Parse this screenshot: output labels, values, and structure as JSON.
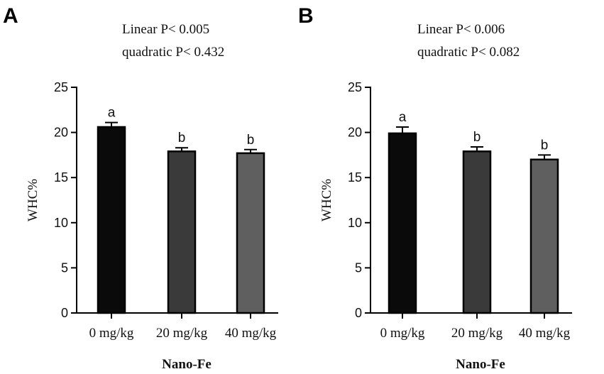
{
  "chart_data": [
    {
      "type": "bar",
      "panel": "A",
      "stats": [
        "Linear P< 0.005",
        "quadratic P< 0.432"
      ],
      "categories": [
        "0 mg/kg",
        "20 mg/kg",
        "40 mg/kg"
      ],
      "values": [
        20.6,
        17.9,
        17.7
      ],
      "errors": [
        0.5,
        0.4,
        0.4
      ],
      "significance": [
        "a",
        "b",
        "b"
      ],
      "colors": [
        "#0a0a0a",
        "#3a3a3a",
        "#5f5f5f"
      ],
      "ylabel": "WHC%",
      "xlabel": "Nano-Fe",
      "ylim": [
        0,
        25
      ],
      "yticks": [
        "0",
        "5",
        "10",
        "15",
        "20",
        "25"
      ]
    },
    {
      "type": "bar",
      "panel": "B",
      "stats": [
        "Linear P< 0.006",
        "quadratic P< 0.082"
      ],
      "categories": [
        "0 mg/kg",
        "20 mg/kg",
        "40 mg/kg"
      ],
      "values": [
        19.9,
        17.9,
        17.0
      ],
      "errors": [
        0.7,
        0.5,
        0.5
      ],
      "significance": [
        "a",
        "b",
        "b"
      ],
      "colors": [
        "#0a0a0a",
        "#3a3a3a",
        "#5f5f5f"
      ],
      "ylabel": "WHC%",
      "xlabel": "Nano-Fe",
      "ylim": [
        0,
        25
      ],
      "yticks": [
        "0",
        "5",
        "10",
        "15",
        "20",
        "25"
      ]
    }
  ]
}
